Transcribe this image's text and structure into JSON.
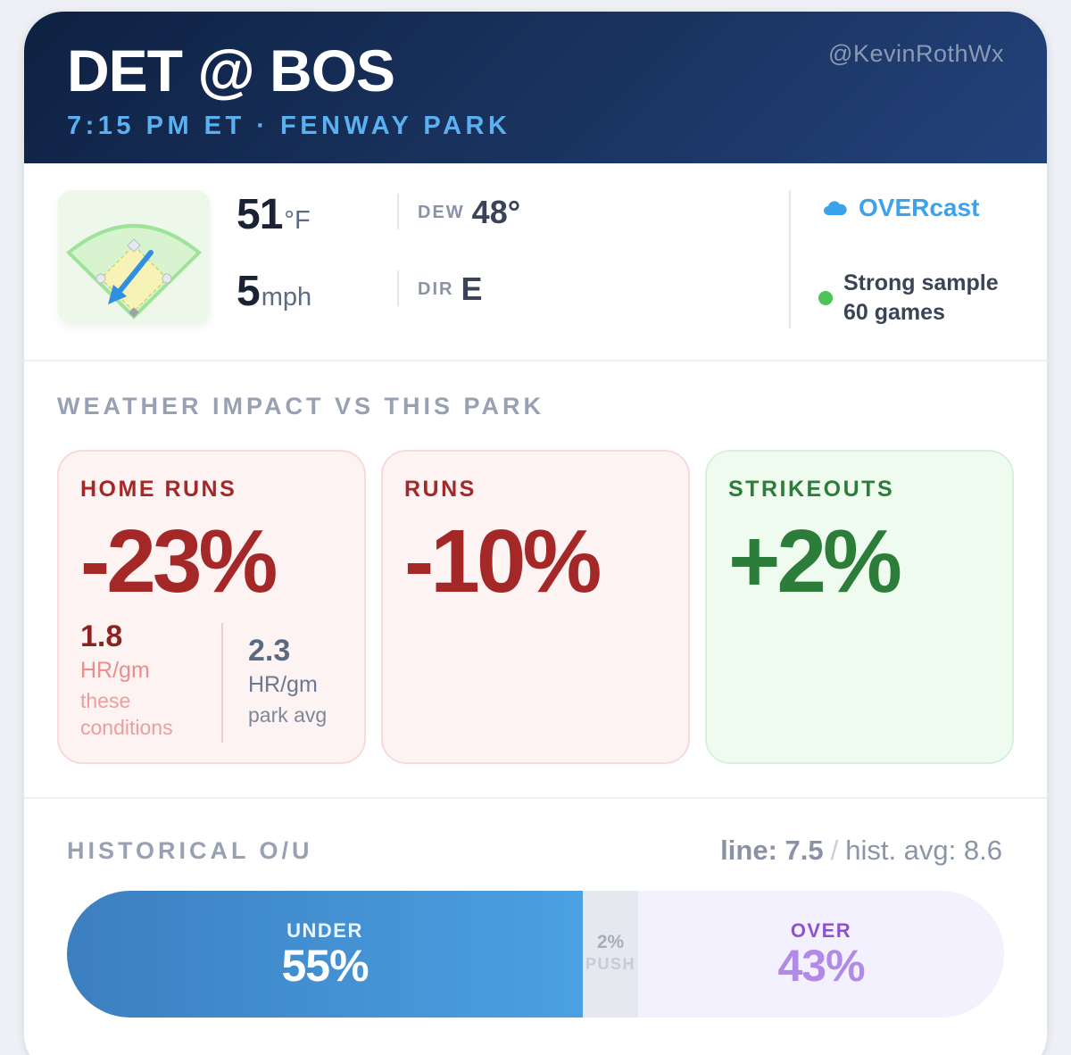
{
  "header": {
    "matchup": "DET @ BOS",
    "subhead": "7:15 PM ET · FENWAY PARK",
    "handle": "@KevinRothWx"
  },
  "weather": {
    "temp_value": "51",
    "temp_unit": "°F",
    "wind_value": "5",
    "wind_unit": "mph",
    "dew_label": "DEW",
    "dew_value": "48°",
    "dir_label": "DIR",
    "dir_value": "E",
    "condition": "OVERcast",
    "condition_icon": "cloud-icon",
    "sample_line1": "Strong sample",
    "sample_line2": "60 games",
    "sample_color": "#4bc45a",
    "field_icon": "baseball-field-wind-arrow-icon"
  },
  "impact": {
    "title": "WEATHER IMPACT VS THIS PARK",
    "cards": [
      {
        "label": "HOME RUNS",
        "value": "-23%",
        "tone": "red",
        "this_value": "1.8",
        "this_unit": "HR/gm",
        "this_desc_1": "these",
        "this_desc_2": "conditions",
        "park_value": "2.3",
        "park_unit": "HR/gm",
        "park_desc": "park avg"
      },
      {
        "label": "RUNS",
        "value": "-10%",
        "tone": "red"
      },
      {
        "label": "STRIKEOUTS",
        "value": "+2%",
        "tone": "green"
      }
    ]
  },
  "historical": {
    "title": "HISTORICAL O/U",
    "line_text": "line: 7.5",
    "slash": "/",
    "avg_text": "hist. avg: 8.6",
    "under_label": "UNDER",
    "under_value": "55%",
    "under_pct": 55,
    "push_value": "2%",
    "push_label": "PUSH",
    "push_pct": 2,
    "over_label": "OVER",
    "over_value": "43%",
    "over_pct": 43
  }
}
